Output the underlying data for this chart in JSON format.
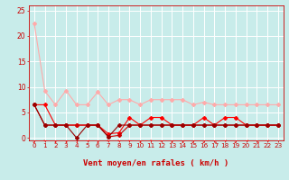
{
  "background_color": "#c8ecea",
  "grid_color": "#ffffff",
  "xlabel": "Vent moyen/en rafales ( km/h )",
  "xlabel_color": "#cc0000",
  "xlabel_fontsize": 6.5,
  "tick_color": "#cc0000",
  "ylim": [
    -0.5,
    26
  ],
  "xlim": [
    -0.5,
    23.5
  ],
  "yticks": [
    0,
    5,
    10,
    15,
    20,
    25
  ],
  "xticks": [
    0,
    1,
    2,
    3,
    4,
    5,
    6,
    7,
    8,
    9,
    10,
    11,
    12,
    13,
    14,
    15,
    16,
    17,
    18,
    19,
    20,
    21,
    22,
    23
  ],
  "line_pink_color": "#ffaaaa",
  "line_red_color": "#ff0000",
  "line_darkred_color": "#cc0000",
  "line_vdark_color": "#990000",
  "x": [
    0,
    1,
    2,
    3,
    4,
    5,
    6,
    7,
    8,
    9,
    10,
    11,
    12,
    13,
    14,
    15,
    16,
    17,
    18,
    19,
    20,
    21,
    22,
    23
  ],
  "y_pink": [
    22.5,
    9.2,
    6.5,
    9.3,
    6.5,
    6.5,
    9.0,
    6.5,
    7.5,
    7.5,
    6.5,
    7.5,
    7.5,
    7.5,
    7.5,
    6.5,
    7.0,
    6.5,
    6.5,
    6.5,
    6.5,
    6.5,
    6.5,
    6.5
  ],
  "y_red": [
    6.5,
    6.5,
    2.5,
    2.5,
    2.5,
    2.5,
    2.5,
    0.8,
    1.0,
    4.0,
    2.5,
    4.0,
    4.0,
    2.5,
    2.5,
    2.5,
    4.0,
    2.5,
    4.0,
    4.0,
    2.5,
    2.5,
    2.5,
    2.5
  ],
  "y_darkred": [
    6.5,
    2.5,
    2.5,
    2.5,
    2.5,
    2.5,
    2.5,
    0.2,
    0.5,
    2.5,
    2.5,
    2.5,
    2.5,
    2.5,
    2.5,
    2.5,
    2.5,
    2.5,
    2.5,
    2.5,
    2.5,
    2.5,
    2.5,
    2.5
  ],
  "y_vdark": [
    6.5,
    2.5,
    2.5,
    2.5,
    0.0,
    2.5,
    2.5,
    0.2,
    2.5,
    2.5,
    2.5,
    2.5,
    2.5,
    2.5,
    2.5,
    2.5,
    2.5,
    2.5,
    2.5,
    2.5,
    2.5,
    2.5,
    2.5,
    2.5
  ],
  "arrows": [
    "↙",
    "←",
    "↙",
    "↙",
    "↓",
    "→",
    "↙",
    "←",
    "←",
    "←",
    "↙",
    "↑",
    "↖",
    "↙",
    "↙",
    "↙",
    "↙",
    "↘",
    "→",
    "↙",
    "→",
    "↘",
    "→",
    ""
  ],
  "marker_size": 2.0,
  "linewidth": 0.8
}
